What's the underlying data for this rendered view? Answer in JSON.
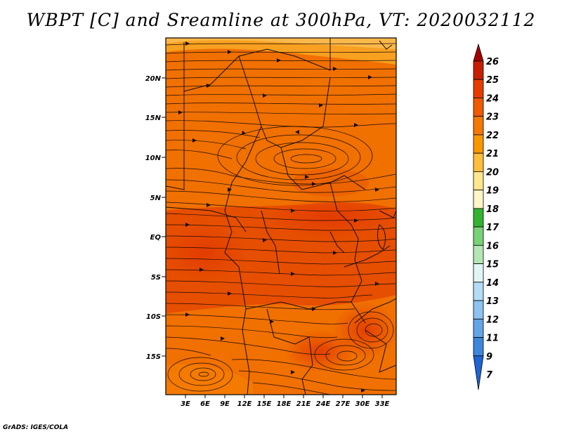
{
  "title": "WBPT [C] and Sreamline at 300hPa, VT: 2020032112",
  "footer": "GrADS: IGES/COLA",
  "map": {
    "lat_labels": [
      "20N",
      "15N",
      "10N",
      "5N",
      "EQ",
      "5S",
      "10S",
      "15S"
    ],
    "lon_labels": [
      "3E",
      "6E",
      "9E",
      "12E",
      "15E",
      "18E",
      "21E",
      "24E",
      "27E",
      "30E",
      "33E"
    ]
  },
  "colorbar": {
    "labels": [
      "26",
      "25",
      "24",
      "23",
      "22",
      "21",
      "20",
      "19",
      "18",
      "17",
      "16",
      "15",
      "14",
      "13",
      "12",
      "11",
      "9",
      "7"
    ],
    "colors": [
      "#a50000",
      "#c81e00",
      "#e63c00",
      "#f05a00",
      "#f57800",
      "#fa9600",
      "#ffbe3c",
      "#ffe68c",
      "#fff5c8",
      "#32b432",
      "#78d278",
      "#b4e6b4",
      "#e1f5f5",
      "#b4dcf5",
      "#8cc3f0",
      "#64a5e6",
      "#3c87dc",
      "#1e64d2"
    ]
  }
}
